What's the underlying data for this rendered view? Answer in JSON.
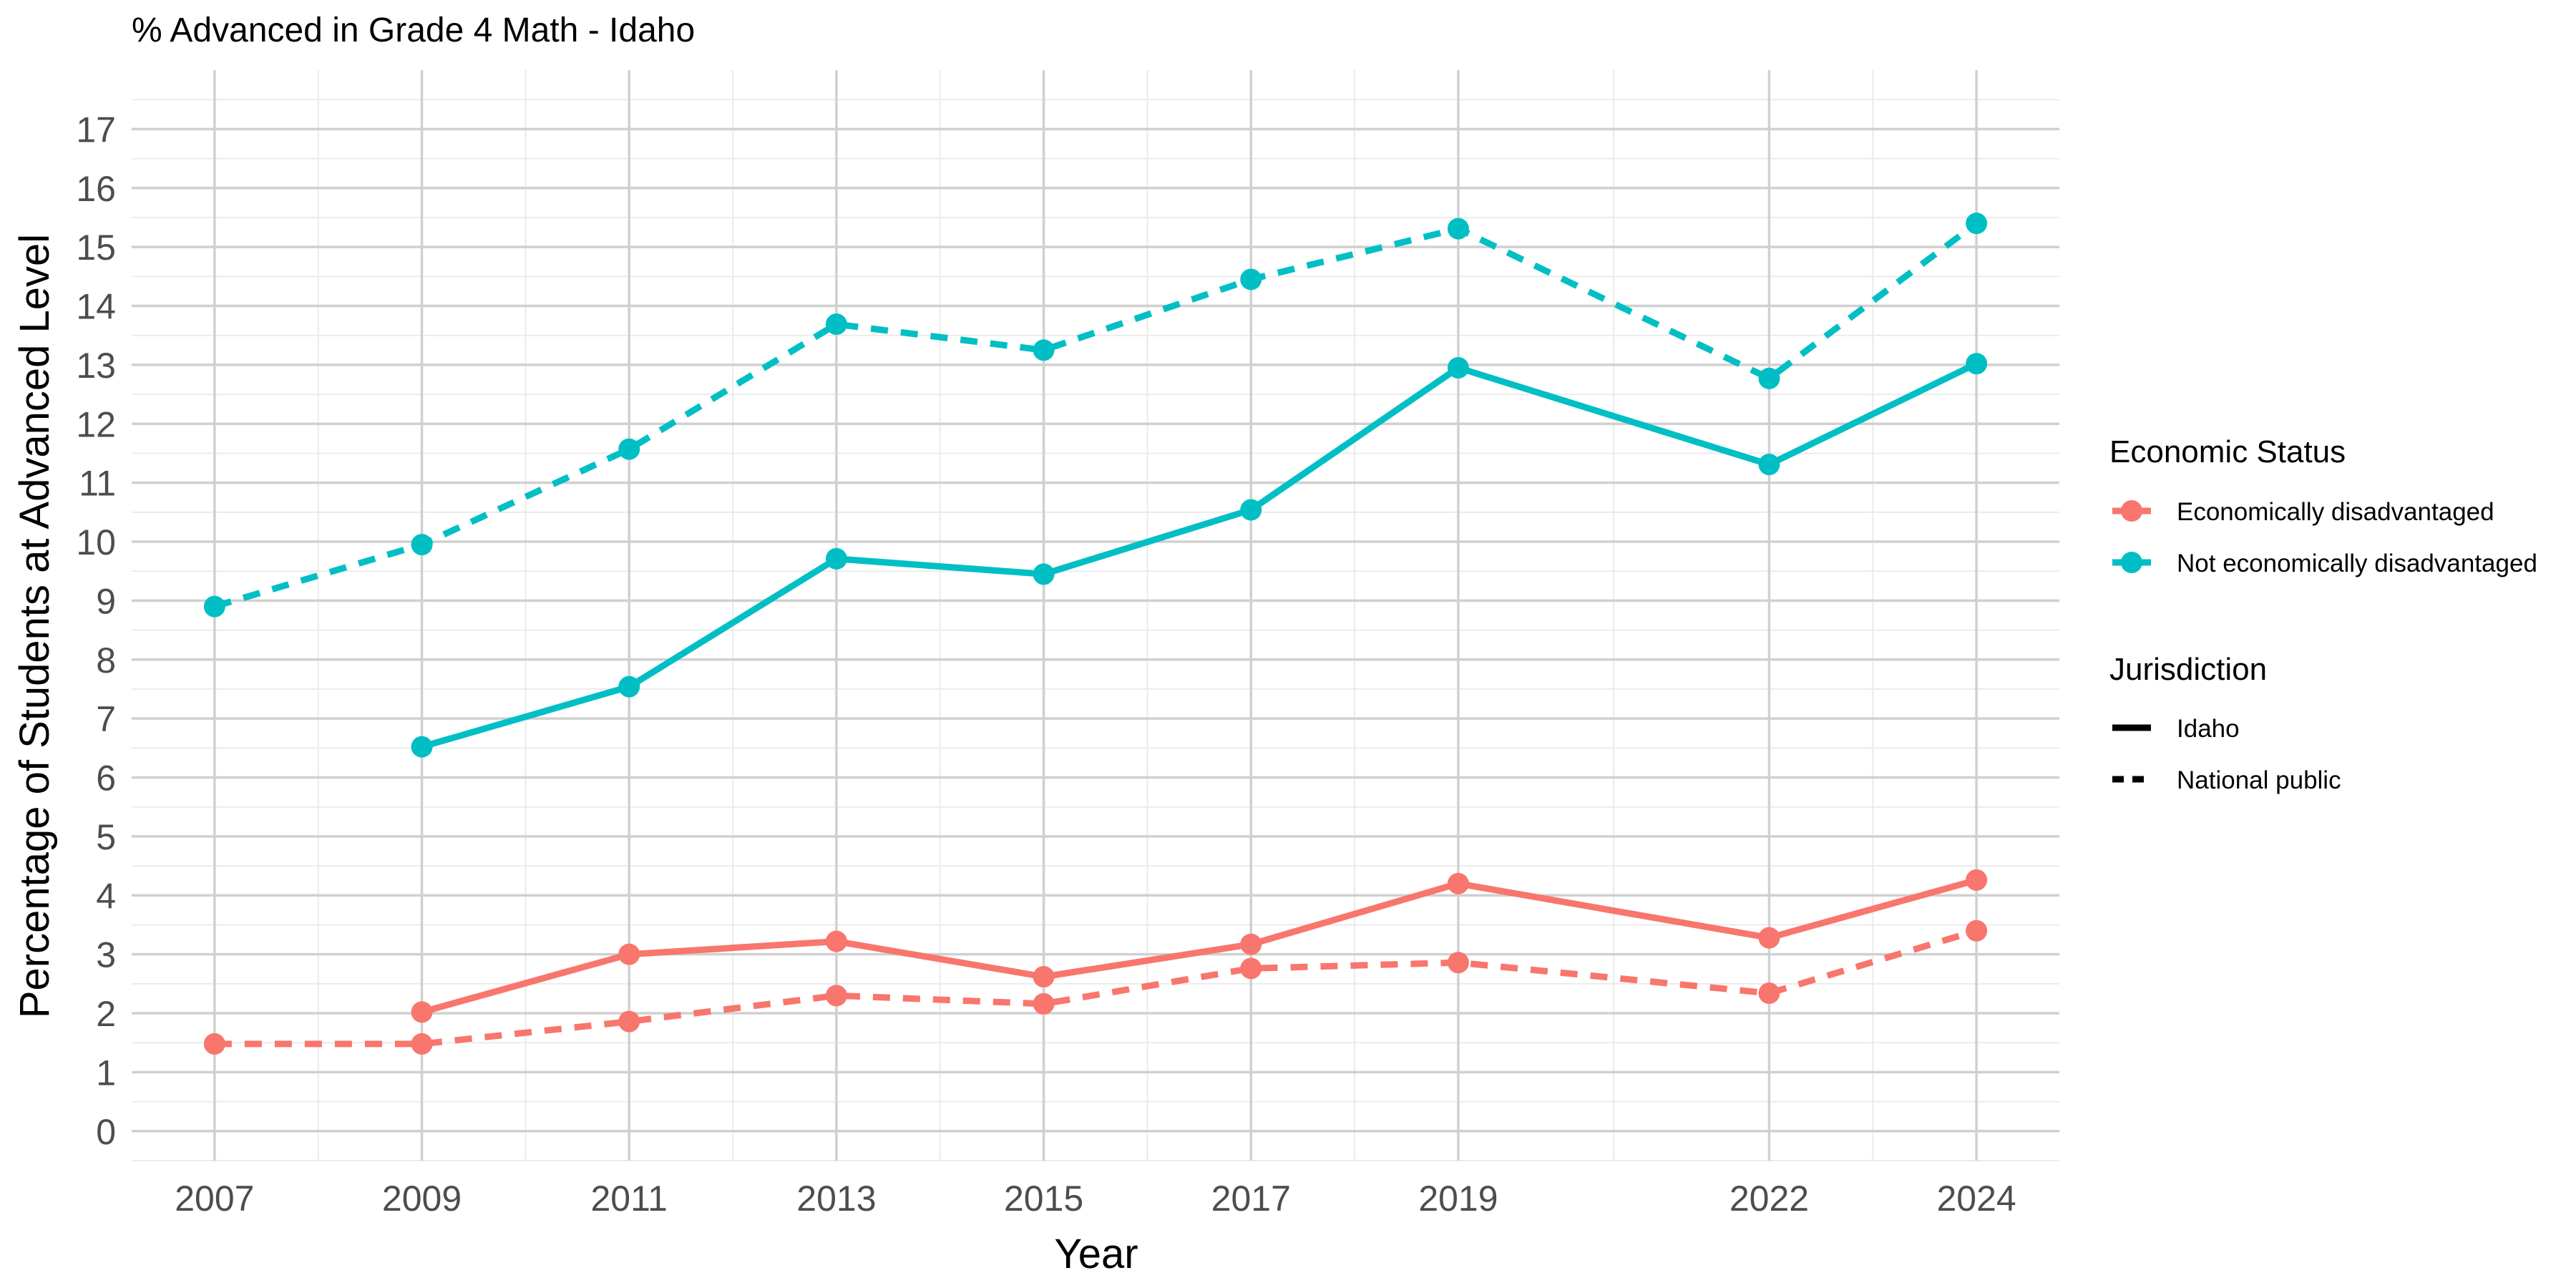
{
  "chart_data": {
    "type": "line",
    "title": "% Advanced in Grade 4 Math - Idaho",
    "xlabel": "Year",
    "ylabel": "Percentage of Students at Advanced Level",
    "x_ticks": [
      2007,
      2009,
      2011,
      2013,
      2015,
      2017,
      2019,
      2022,
      2024
    ],
    "xlim": [
      2006.2,
      2024.8
    ],
    "ylim": [
      -0.5,
      18.0
    ],
    "y_ticks": [
      0,
      1,
      2,
      3,
      4,
      5,
      6,
      7,
      8,
      9,
      10,
      11,
      12,
      13,
      14,
      15,
      16,
      17
    ],
    "grid": true,
    "legend_position": "right",
    "legends": [
      {
        "title": "Economic Status",
        "entries": [
          {
            "label": "Economically disadvantaged",
            "color": "#F8766D"
          },
          {
            "label": "Not economically disadvantaged",
            "color": "#00BFC4"
          }
        ]
      },
      {
        "title": "Jurisdiction",
        "entries": [
          {
            "label": "Idaho",
            "linetype": "solid"
          },
          {
            "label": "National public",
            "linetype": "dashed"
          }
        ]
      }
    ],
    "series": [
      {
        "status": "Not economically disadvantaged",
        "jurisdiction": "National public",
        "color": "#00BFC4",
        "linetype": "dashed",
        "points": [
          [
            2007,
            8.9
          ],
          [
            2009,
            9.95
          ],
          [
            2011,
            11.57
          ],
          [
            2013,
            13.69
          ],
          [
            2015,
            13.25
          ],
          [
            2017,
            14.45
          ],
          [
            2019,
            15.31
          ],
          [
            2022,
            12.77
          ],
          [
            2024,
            15.4
          ]
        ]
      },
      {
        "status": "Not economically disadvantaged",
        "jurisdiction": "Idaho",
        "color": "#00BFC4",
        "linetype": "solid",
        "points": [
          [
            2009,
            6.52
          ],
          [
            2011,
            7.54
          ],
          [
            2013,
            9.71
          ],
          [
            2015,
            9.45
          ],
          [
            2017,
            10.54
          ],
          [
            2019,
            12.95
          ],
          [
            2022,
            11.31
          ],
          [
            2024,
            13.02
          ]
        ]
      },
      {
        "status": "Economically disadvantaged",
        "jurisdiction": "Idaho",
        "color": "#F8766D",
        "linetype": "solid",
        "points": [
          [
            2009,
            2.02
          ],
          [
            2011,
            3.0
          ],
          [
            2013,
            3.22
          ],
          [
            2015,
            2.62
          ],
          [
            2017,
            3.17
          ],
          [
            2019,
            4.2
          ],
          [
            2022,
            3.28
          ],
          [
            2024,
            4.26
          ]
        ]
      },
      {
        "status": "Economically disadvantaged",
        "jurisdiction": "National public",
        "color": "#F8766D",
        "linetype": "dashed",
        "points": [
          [
            2007,
            1.48
          ],
          [
            2009,
            1.48
          ],
          [
            2011,
            1.86
          ],
          [
            2013,
            2.3
          ],
          [
            2015,
            2.16
          ],
          [
            2017,
            2.76
          ],
          [
            2019,
            2.86
          ],
          [
            2022,
            2.34
          ],
          [
            2024,
            3.4
          ]
        ]
      }
    ]
  }
}
